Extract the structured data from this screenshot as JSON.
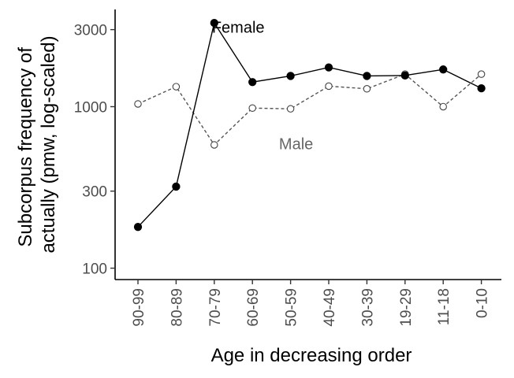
{
  "chart_data": {
    "type": "line",
    "xlabel": "Age in decreasing order",
    "ylabel_lines": [
      "Subcorpus frequency of",
      "actually (pmw, log-scaled)"
    ],
    "y_scale": "log10",
    "ylim": [
      85,
      4000
    ],
    "y_ticks": [
      100,
      300,
      1000,
      3000
    ],
    "y_tick_labels": [
      "100",
      "300",
      "1000",
      "3000"
    ],
    "categories": [
      "90-99",
      "80-89",
      "70-79",
      "60-69",
      "50-59",
      "40-49",
      "30-39",
      "19-29",
      "11-18",
      "0-10"
    ],
    "grid": false,
    "legend": "none (direct labels)",
    "series": [
      {
        "name": "Female",
        "label_x_category": "60-69",
        "values": [
          180,
          320,
          3300,
          1420,
          1550,
          1750,
          1550,
          1560,
          1700,
          1300
        ],
        "color": "#000000",
        "line_style": "solid",
        "marker": "filled-circle"
      },
      {
        "name": "Male",
        "label_x_category": "50-59",
        "values": [
          1040,
          1330,
          580,
          980,
          970,
          1340,
          1290,
          1590,
          1000,
          1590
        ],
        "color": "#555555",
        "line_style": "dashed",
        "marker": "open-circle"
      }
    ],
    "series_label_y": [
      3100,
      590
    ]
  }
}
